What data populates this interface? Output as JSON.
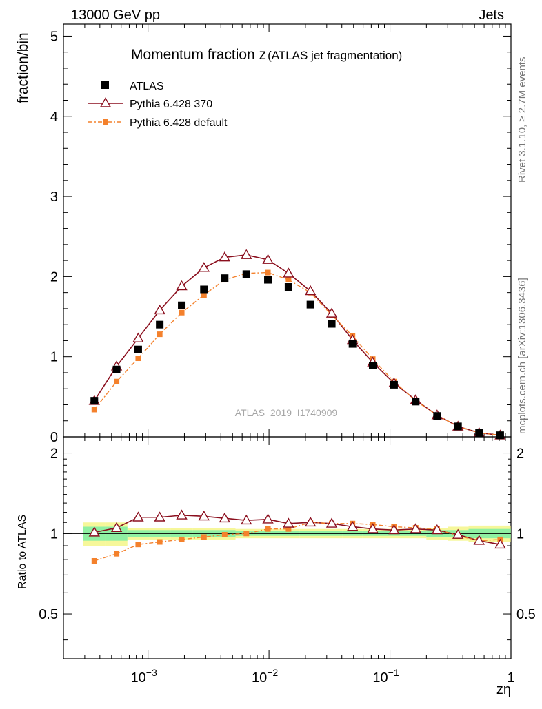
{
  "header": {
    "energy_label": "13000 GeV pp",
    "process_label": "Jets",
    "rivet_label": "Rivet 3.1.10, ≥ 2.7M events",
    "source_label": "mcplots.cern.ch [arXiv:1306.3436]"
  },
  "chart_data": {
    "type": "scatter",
    "title_main": "Momentum fraction z",
    "title_sub": "(ATLAS jet fragmentation)",
    "analysis_id": "ATLAS_2019_I1740909",
    "xlabel": "zη",
    "ylabel": "fraction/bin",
    "ratio_ylabel": "Ratio to ATLAS",
    "x_scale": "log",
    "xlim": [
      0.0002,
      1
    ],
    "ylim": [
      0,
      5.15
    ],
    "ratio_ylim": [
      0.34,
      2.3
    ],
    "x_tick_labels": [
      "10",
      "10",
      "10",
      "1"
    ],
    "x_tick_exponents": [
      "−3",
      "−2",
      "−1",
      ""
    ],
    "y_tick_labels": [
      "0",
      "1",
      "2",
      "3",
      "4",
      "5"
    ],
    "ratio_tick_labels": [
      "0.5",
      "1",
      "2"
    ],
    "legend": [
      "ATLAS",
      "Pythia 6.428 370",
      "Pythia 6.428 default"
    ],
    "x": [
      0.00036,
      0.00055,
      0.00083,
      0.00125,
      0.0019,
      0.0029,
      0.0043,
      0.0065,
      0.0098,
      0.0145,
      0.022,
      0.033,
      0.049,
      0.072,
      0.108,
      0.163,
      0.245,
      0.365,
      0.545,
      0.815
    ],
    "series": [
      {
        "name": "ATLAS",
        "values": [
          0.45,
          0.84,
          1.09,
          1.4,
          1.64,
          1.84,
          1.98,
          2.03,
          1.96,
          1.87,
          1.65,
          1.41,
          1.16,
          0.89,
          0.65,
          0.44,
          0.26,
          0.13,
          0.05,
          0.02
        ]
      },
      {
        "name": "Pythia 6.428 370",
        "values": [
          0.45,
          0.88,
          1.23,
          1.58,
          1.88,
          2.11,
          2.24,
          2.27,
          2.21,
          2.04,
          1.82,
          1.54,
          1.21,
          0.93,
          0.67,
          0.46,
          0.27,
          0.13,
          0.05,
          0.02
        ]
      },
      {
        "name": "Pythia 6.428 default",
        "values": [
          0.34,
          0.69,
          0.98,
          1.28,
          1.55,
          1.77,
          1.96,
          2.04,
          2.05,
          1.96,
          1.8,
          1.52,
          1.26,
          0.97,
          0.69,
          0.45,
          0.27,
          0.13,
          0.05,
          0.02
        ]
      }
    ],
    "ratio_series": [
      {
        "name": "Pythia 6.428 370",
        "values": [
          1.01,
          1.05,
          1.15,
          1.15,
          1.17,
          1.16,
          1.14,
          1.12,
          1.13,
          1.09,
          1.1,
          1.09,
          1.06,
          1.04,
          1.03,
          1.04,
          1.03,
          0.99,
          0.94,
          0.91
        ]
      },
      {
        "name": "Pythia 6.428 default",
        "values": [
          0.79,
          0.84,
          0.91,
          0.93,
          0.95,
          0.97,
          0.99,
          1.0,
          1.04,
          1.04,
          1.1,
          1.09,
          1.09,
          1.08,
          1.06,
          1.05,
          1.04,
          0.98,
          0.94,
          0.95
        ]
      }
    ],
    "band_outer": [
      0.1,
      0.1,
      0.05,
      0.05,
      0.05,
      0.05,
      0.05,
      0.04,
      0.04,
      0.04,
      0.04,
      0.04,
      0.04,
      0.04,
      0.04,
      0.04,
      0.05,
      0.06,
      0.07,
      0.07
    ],
    "band_inner": [
      0.06,
      0.06,
      0.03,
      0.03,
      0.03,
      0.03,
      0.03,
      0.02,
      0.02,
      0.02,
      0.02,
      0.02,
      0.02,
      0.02,
      0.02,
      0.02,
      0.03,
      0.03,
      0.04,
      0.04
    ],
    "colors": {
      "atlas": "#000000",
      "p370": "#8b0f1e",
      "pdefault": "#f4812c",
      "band_outer": "#f6f79a",
      "band_inner": "#8ff0a2"
    }
  }
}
